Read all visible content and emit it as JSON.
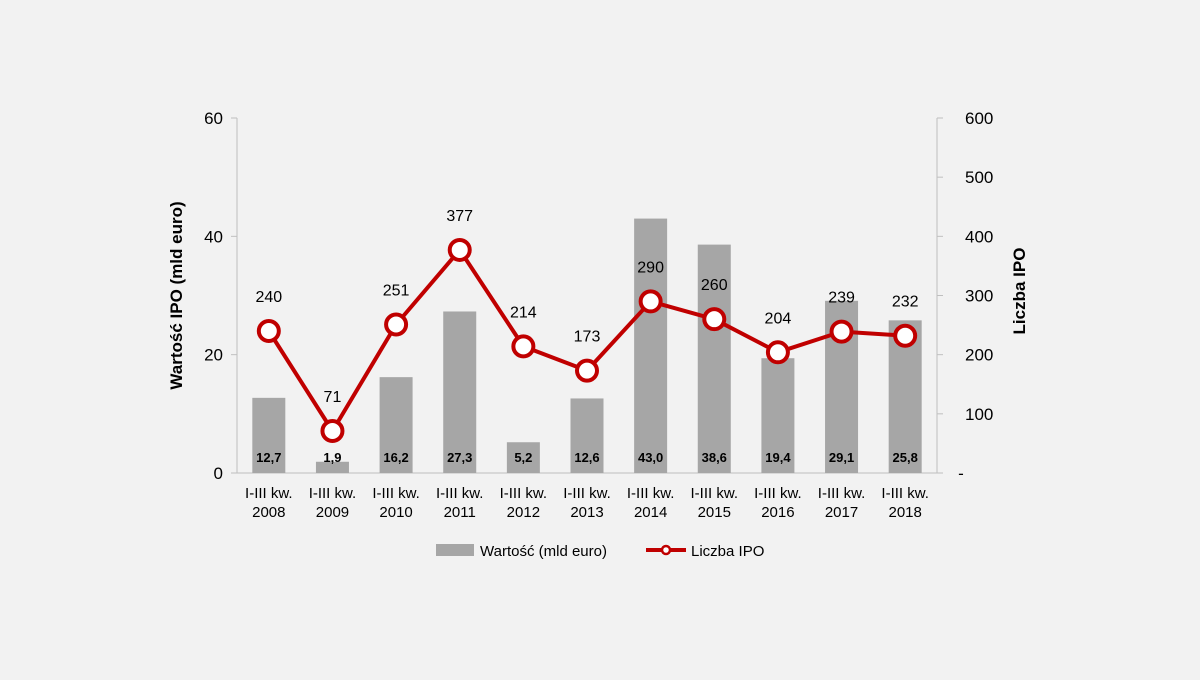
{
  "chart_data": {
    "type": "bar+line",
    "categories": [
      [
        "I-III kw.",
        "2008"
      ],
      [
        "I-III kw.",
        "2009"
      ],
      [
        "I-III kw.",
        "2010"
      ],
      [
        "I-III kw.",
        "2011"
      ],
      [
        "I-III kw.",
        "2012"
      ],
      [
        "I-III kw.",
        "2013"
      ],
      [
        "I-III kw.",
        "2014"
      ],
      [
        "I-III kw.",
        "2015"
      ],
      [
        "I-III kw.",
        "2016"
      ],
      [
        "I-III kw.",
        "2017"
      ],
      [
        "I-III kw.",
        "2018"
      ]
    ],
    "series": [
      {
        "name": "Wartość (mld euro)",
        "kind": "bar",
        "axis": "left",
        "values": [
          12.7,
          1.9,
          16.2,
          27.3,
          5.2,
          12.6,
          43.0,
          38.6,
          19.4,
          29.1,
          25.8
        ],
        "labels": [
          "12,7",
          "1,9",
          "16,2",
          "27,3",
          "5,2",
          "12,6",
          "43,0",
          "38,6",
          "19,4",
          "29,1",
          "25,8"
        ],
        "color": "#a6a6a6"
      },
      {
        "name": "Liczba IPO",
        "kind": "line",
        "axis": "right",
        "values": [
          240,
          71,
          251,
          377,
          214,
          173,
          290,
          260,
          204,
          239,
          232
        ],
        "labels": [
          "240",
          "71",
          "251",
          "377",
          "214",
          "173",
          "290",
          "260",
          "204",
          "239",
          "232"
        ],
        "color": "#c00000"
      }
    ],
    "ylabel": "Wartość IPO (mld euro)",
    "y2label": "Liczba IPO",
    "ylim": [
      0,
      60
    ],
    "y2lim": [
      0,
      600
    ],
    "yticks": [
      0,
      20,
      40,
      60
    ],
    "ytick_labels": [
      "0",
      "20",
      "40",
      "60"
    ],
    "y2ticks": [
      0,
      100,
      200,
      300,
      400,
      500,
      600
    ],
    "y2tick_labels": [
      "-",
      "100",
      "200",
      "300",
      "400",
      "500",
      "600"
    ],
    "legend_position": "bottom",
    "grid": false
  }
}
